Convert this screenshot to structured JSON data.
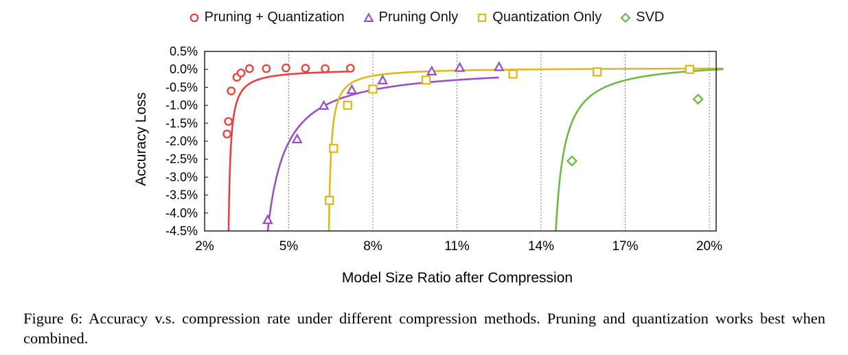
{
  "chart_data": {
    "type": "line",
    "title": "",
    "xlabel": "Model Size Ratio after Compression",
    "ylabel": "Accuracy Loss",
    "xlim": [
      2,
      20.5
    ],
    "ylim": [
      -4.5,
      0.5
    ],
    "xticks": [
      2,
      5,
      8,
      11,
      14,
      17,
      20
    ],
    "xtick_labels": [
      "2%",
      "5%",
      "8%",
      "11%",
      "14%",
      "17%",
      "20%"
    ],
    "yticks": [
      0.5,
      0.0,
      -0.5,
      -1.0,
      -1.5,
      -2.0,
      -2.5,
      -3.0,
      -3.5,
      -4.0,
      -4.5
    ],
    "ytick_labels": [
      "0.5%",
      "0.0%",
      "-0.5%",
      "-1.0%",
      "-1.5%",
      "-2.0%",
      "-2.5%",
      "-3.0%",
      "-3.5%",
      "-4.0%",
      "-4.5%"
    ],
    "grid": "vertical-dotted",
    "legend_position": "top",
    "series": [
      {
        "name": "Pruning + Quantization",
        "color": "#e8403a",
        "marker": "circle",
        "x": [
          2.8,
          2.85,
          2.95,
          3.15,
          3.3,
          3.6,
          4.2,
          4.9,
          5.6,
          6.3,
          7.2
        ],
        "values": [
          -1.8,
          -1.45,
          -0.6,
          -0.22,
          -0.1,
          0.02,
          0.02,
          0.04,
          0.03,
          0.02,
          0.03
        ],
        "curve": {
          "a": 2.78,
          "c": 0.016,
          "k": 0.34
        }
      },
      {
        "name": "Pruning Only",
        "color": "#9b4fc2",
        "marker": "triangle",
        "x": [
          4.25,
          5.3,
          6.25,
          7.25,
          8.35,
          10.1,
          11.1,
          12.5
        ],
        "values": [
          -4.2,
          -1.95,
          -1.02,
          -0.58,
          -0.31,
          -0.06,
          0.04,
          0.06
        ],
        "curve": {
          "a": 3.6,
          "c": 0.11,
          "k": 3.0
        }
      },
      {
        "name": "Quantization Only",
        "color": "#e0b81c",
        "marker": "square",
        "x": [
          6.45,
          6.6,
          7.1,
          8.0,
          9.9,
          13.0,
          16.0,
          19.3
        ],
        "values": [
          -3.65,
          -2.2,
          -1.0,
          -0.55,
          -0.3,
          -0.13,
          -0.07,
          0.0
        ],
        "curve": {
          "a": 6.35,
          "c": 0.05,
          "k": 0.38
        }
      },
      {
        "name": "SVD",
        "color": "#6cba45",
        "marker": "diamond",
        "x": [
          15.1,
          19.6
        ],
        "values": [
          -2.55,
          -0.83
        ],
        "curve": {
          "a": 14.2,
          "c": 0.25,
          "k": 1.55
        }
      }
    ]
  },
  "caption": {
    "text": "Figure 6: Accuracy v.s.  compression rate under different compression methods.  Pruning and quantization works best when combined."
  }
}
